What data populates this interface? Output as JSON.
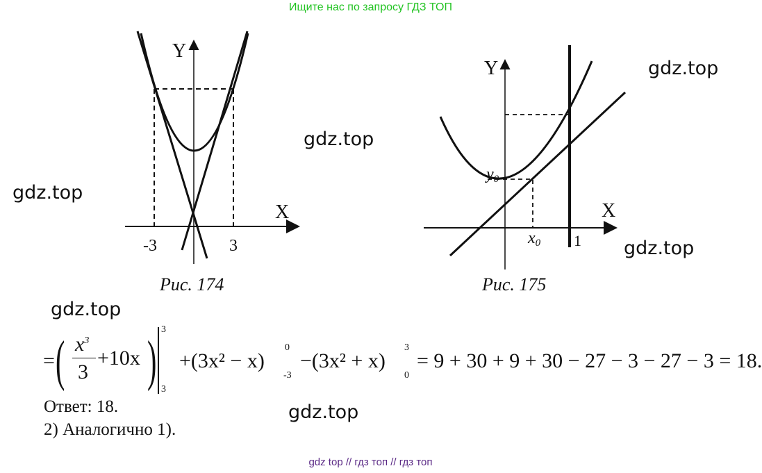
{
  "banner": "Ищите нас по запросу ГДЗ ТОП",
  "watermarks": [
    "gdz.top",
    "gdz.top",
    "gdz.top",
    "gdz.top",
    "gdz.top",
    "gdz.top"
  ],
  "figure174": {
    "caption": "Рис. 174",
    "x_label": "X",
    "y_label": "Y",
    "ticks": [
      "-3",
      "3"
    ]
  },
  "figure175": {
    "caption": "Рис. 175",
    "x_label": "X",
    "y_label": "Y",
    "x0_label": "x",
    "y0_label": "y",
    "sub": "0",
    "tick": "1"
  },
  "formula": {
    "lhs_eq": "=",
    "frac_num": "x",
    "frac_num_exp": "3",
    "frac_den": "3",
    "term1_rest": "+10x",
    "limits1": {
      "upper": "3",
      "lower": "3"
    },
    "term2": "+(3x² − x)",
    "limits2": {
      "upper": "0",
      "lower": "-3"
    },
    "term3": "−(3x² + x)",
    "limits3": {
      "upper": "3",
      "lower": "0"
    },
    "result": "= 9 + 30 + 9 + 30 − 27 − 3 − 27 − 3 = 18."
  },
  "answer": "Ответ: 18.",
  "item2": "2) Аналогично 1).",
  "footer": "gdz top  //  гдз топ  //  гдз топ"
}
